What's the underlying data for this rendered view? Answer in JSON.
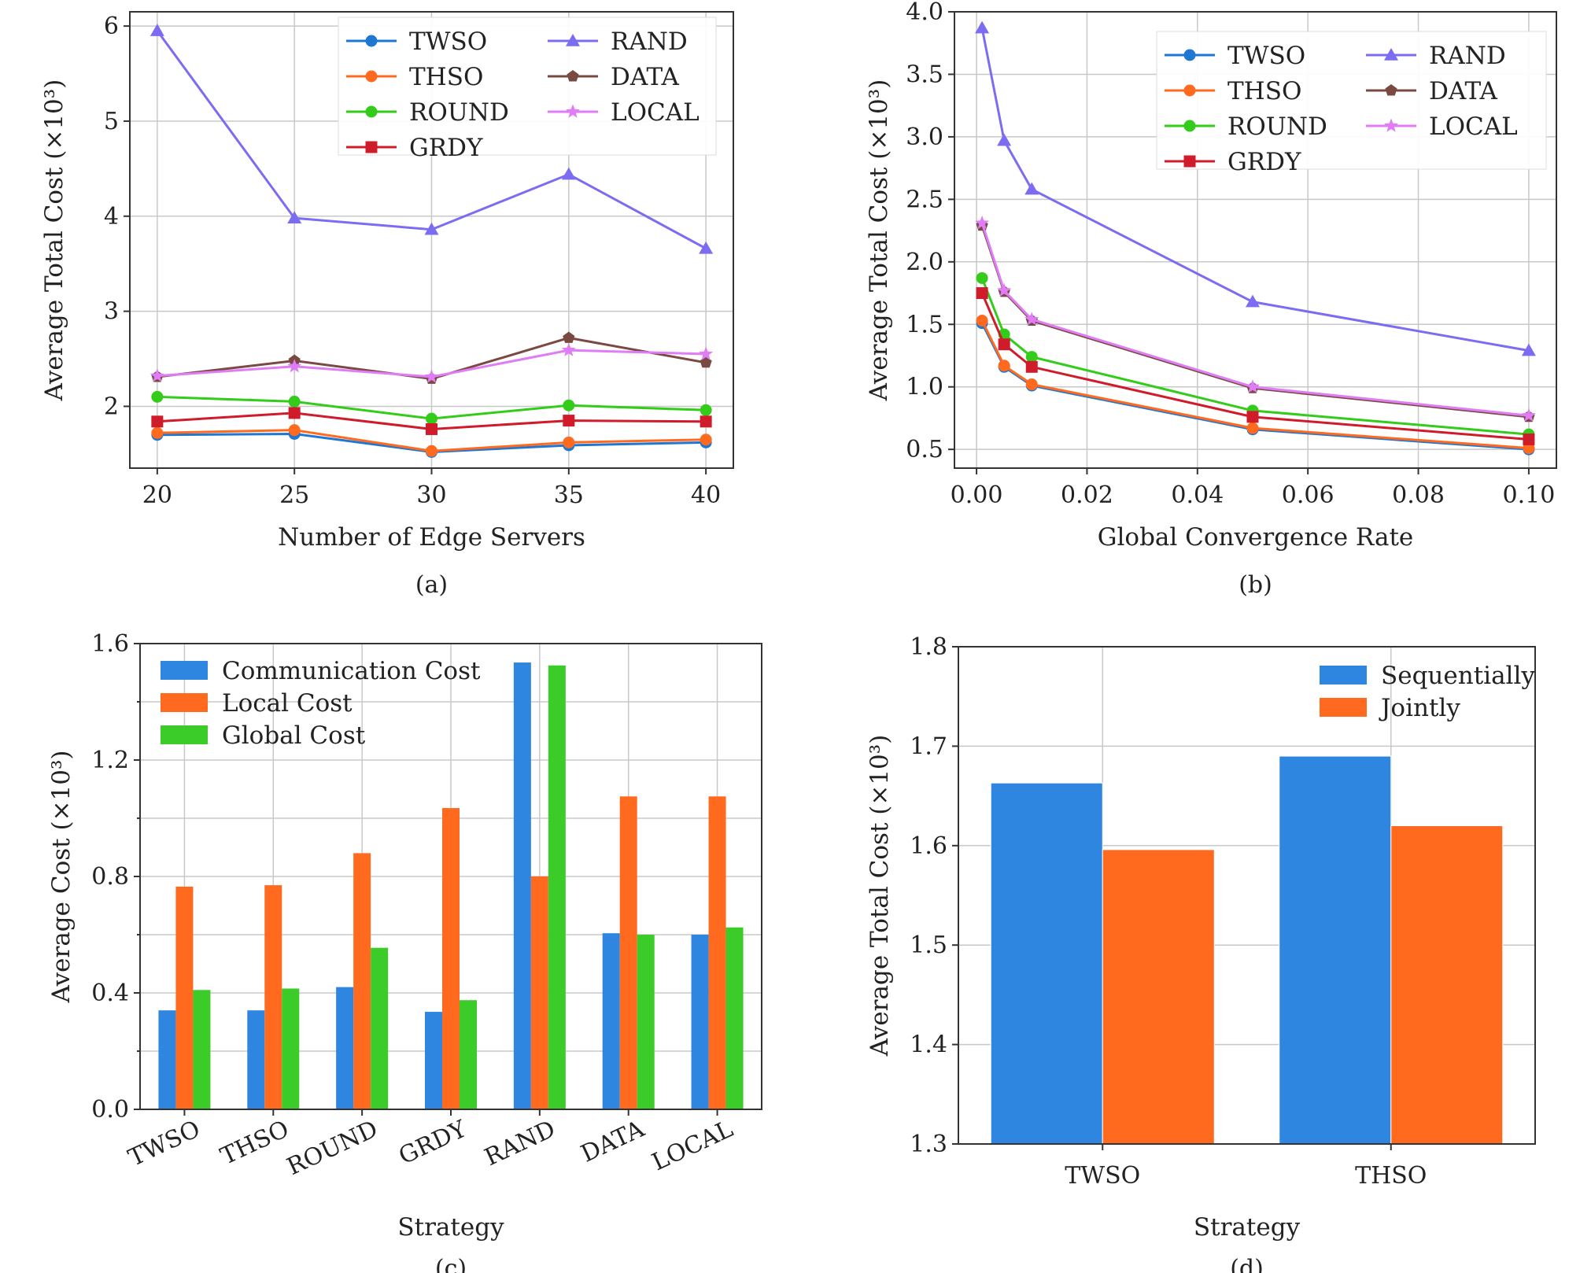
{
  "chart_data": [
    {
      "id": "a",
      "type": "line",
      "caption": "(a)",
      "xlabel": "Number of Edge Servers",
      "ylabel": "Average Total Cost (×10³)",
      "x": [
        20,
        25,
        30,
        35,
        40
      ],
      "xlim": [
        19,
        41
      ],
      "ylim": [
        1.35,
        6.15
      ],
      "xticks": [
        20,
        25,
        30,
        35,
        40
      ],
      "xtick_labels": [
        "20",
        "25",
        "30",
        "35",
        "40"
      ],
      "yticks": [
        2,
        3,
        4,
        5,
        6
      ],
      "ytick_labels": [
        "2",
        "3",
        "4",
        "5",
        "6"
      ],
      "grid": true,
      "legend": "top-right, 2 columns",
      "series": [
        {
          "name": "TWSO",
          "color": "#1f77d4",
          "marker": "circle",
          "values": [
            1.7,
            1.71,
            1.52,
            1.59,
            1.62
          ]
        },
        {
          "name": "THSO",
          "color": "#ff6a1f",
          "marker": "circle",
          "values": [
            1.72,
            1.75,
            1.53,
            1.62,
            1.65
          ]
        },
        {
          "name": "ROUND",
          "color": "#33cc1a",
          "marker": "circle",
          "values": [
            2.1,
            2.05,
            1.87,
            2.01,
            1.96
          ]
        },
        {
          "name": "GRDY",
          "color": "#d01c2a",
          "marker": "square",
          "values": [
            1.84,
            1.93,
            1.76,
            1.85,
            1.84
          ]
        },
        {
          "name": "RAND",
          "color": "#7b6cf2",
          "marker": "triangle",
          "values": [
            5.95,
            3.98,
            3.86,
            4.44,
            3.66
          ]
        },
        {
          "name": "DATA",
          "color": "#7a4a42",
          "marker": "pentagon",
          "values": [
            2.31,
            2.48,
            2.29,
            2.72,
            2.46
          ]
        },
        {
          "name": "LOCAL",
          "color": "#e07cf5",
          "marker": "star",
          "values": [
            2.32,
            2.42,
            2.31,
            2.59,
            2.55
          ]
        }
      ]
    },
    {
      "id": "b",
      "type": "line",
      "caption": "(b)",
      "xlabel": "Global Convergence Rate",
      "ylabel": "Average Total Cost (×10³)",
      "x": [
        0.001,
        0.005,
        0.01,
        0.05,
        0.1
      ],
      "xlim": [
        -0.004,
        0.105
      ],
      "ylim": [
        0.35,
        4.0
      ],
      "xticks": [
        0.0,
        0.02,
        0.04,
        0.06,
        0.08,
        0.1
      ],
      "xtick_labels": [
        "0.00",
        "0.02",
        "0.04",
        "0.06",
        "0.08",
        "0.10"
      ],
      "yticks": [
        0.5,
        1.0,
        1.5,
        2.0,
        2.5,
        3.0,
        3.5,
        4.0
      ],
      "ytick_labels": [
        "0.5",
        "1.0",
        "1.5",
        "2.0",
        "2.5",
        "3.0",
        "3.5",
        "4.0"
      ],
      "grid": true,
      "legend": "top-right, 2 columns",
      "series": [
        {
          "name": "TWSO",
          "color": "#1f77d4",
          "marker": "circle",
          "values": [
            1.51,
            1.16,
            1.01,
            0.66,
            0.5
          ]
        },
        {
          "name": "THSO",
          "color": "#ff6a1f",
          "marker": "circle",
          "values": [
            1.53,
            1.17,
            1.02,
            0.67,
            0.51
          ]
        },
        {
          "name": "ROUND",
          "color": "#33cc1a",
          "marker": "circle",
          "values": [
            1.87,
            1.42,
            1.24,
            0.81,
            0.62
          ]
        },
        {
          "name": "GRDY",
          "color": "#d01c2a",
          "marker": "square",
          "values": [
            1.75,
            1.34,
            1.16,
            0.76,
            0.58
          ]
        },
        {
          "name": "RAND",
          "color": "#7b6cf2",
          "marker": "triangle",
          "values": [
            3.87,
            2.97,
            2.58,
            1.68,
            1.29
          ]
        },
        {
          "name": "DATA",
          "color": "#7a4a42",
          "marker": "pentagon",
          "values": [
            2.29,
            1.76,
            1.53,
            0.99,
            0.76
          ]
        },
        {
          "name": "LOCAL",
          "color": "#e07cf5",
          "marker": "star",
          "values": [
            2.31,
            1.77,
            1.54,
            1.0,
            0.77
          ]
        }
      ]
    },
    {
      "id": "c",
      "type": "bar",
      "caption": "(c)",
      "xlabel": "Strategy",
      "ylabel": "Average Cost (×10³)",
      "categories": [
        "TWSO",
        "THSO",
        "ROUND",
        "GRDY",
        "RAND",
        "DATA",
        "LOCAL"
      ],
      "ylim": [
        0,
        1.6
      ],
      "yticks": [
        0.0,
        0.4,
        0.8,
        1.2,
        1.6
      ],
      "ytick_labels": [
        "0.0",
        "0.4",
        "0.8",
        "1.2",
        "1.6"
      ],
      "grid": true,
      "legend": "top-left",
      "series": [
        {
          "name": "Communication Cost",
          "color": "#2f86e0",
          "values": [
            0.34,
            0.34,
            0.42,
            0.335,
            1.535,
            0.605,
            0.6
          ]
        },
        {
          "name": "Local Cost",
          "color": "#ff6a1f",
          "values": [
            0.765,
            0.77,
            0.88,
            1.035,
            0.8,
            1.075,
            1.075
          ]
        },
        {
          "name": "Global Cost",
          "color": "#3ccc2a",
          "values": [
            0.41,
            0.415,
            0.555,
            0.375,
            1.525,
            0.6,
            0.625
          ]
        }
      ]
    },
    {
      "id": "d",
      "type": "bar",
      "caption": "(d)",
      "xlabel": "Strategy",
      "ylabel": "Average Total Cost (×10³)",
      "categories": [
        "TWSO",
        "THSO"
      ],
      "ylim": [
        1.3,
        1.8
      ],
      "yticks": [
        1.3,
        1.4,
        1.5,
        1.6,
        1.7,
        1.8
      ],
      "ytick_labels": [
        "1.3",
        "1.4",
        "1.5",
        "1.6",
        "1.7",
        "1.8"
      ],
      "grid": true,
      "legend": "top-right",
      "series": [
        {
          "name": "Sequentially",
          "color": "#2f86e0",
          "values": [
            1.663,
            1.69
          ]
        },
        {
          "name": "Jointly",
          "color": "#ff6a1f",
          "values": [
            1.596,
            1.62
          ]
        }
      ]
    }
  ]
}
